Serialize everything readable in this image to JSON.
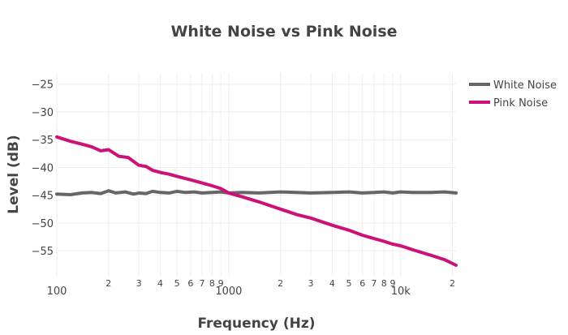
{
  "chart_data": {
    "type": "line",
    "title": "White Noise vs Pink Noise",
    "xlabel": "Frequency (Hz)",
    "ylabel": "Level (dB)",
    "x_scale": "log",
    "xlim": [
      100,
      21000
    ],
    "ylim": [
      -59.5,
      -23
    ],
    "grid": true,
    "legend_position": "top-right",
    "x_ticks_major": [
      {
        "value": 100,
        "label": "100"
      },
      {
        "value": 1000,
        "label": "1000"
      },
      {
        "value": 10000,
        "label": "10k"
      }
    ],
    "x_ticks_minor": [
      {
        "value": 200,
        "label": "2"
      },
      {
        "value": 300,
        "label": "3"
      },
      {
        "value": 400,
        "label": "4"
      },
      {
        "value": 500,
        "label": "5"
      },
      {
        "value": 600,
        "label": "6"
      },
      {
        "value": 700,
        "label": "7"
      },
      {
        "value": 800,
        "label": "8"
      },
      {
        "value": 900,
        "label": "9"
      },
      {
        "value": 2000,
        "label": "2"
      },
      {
        "value": 3000,
        "label": "3"
      },
      {
        "value": 4000,
        "label": "4"
      },
      {
        "value": 5000,
        "label": "5"
      },
      {
        "value": 6000,
        "label": "6"
      },
      {
        "value": 7000,
        "label": "7"
      },
      {
        "value": 8000,
        "label": "8"
      },
      {
        "value": 9000,
        "label": "9"
      },
      {
        "value": 20000,
        "label": "2"
      }
    ],
    "y_ticks": [
      {
        "value": -25,
        "label": "−25"
      },
      {
        "value": -30,
        "label": "−30"
      },
      {
        "value": -35,
        "label": "−35"
      },
      {
        "value": -40,
        "label": "−40"
      },
      {
        "value": -45,
        "label": "−45"
      },
      {
        "value": -50,
        "label": "−50"
      },
      {
        "value": -55,
        "label": "−55"
      }
    ],
    "series": [
      {
        "name": "White Noise",
        "color": "#666666",
        "x": [
          100,
          120,
          140,
          160,
          180,
          200,
          220,
          250,
          280,
          300,
          330,
          360,
          400,
          450,
          500,
          560,
          630,
          700,
          800,
          900,
          1000,
          1200,
          1500,
          2000,
          2500,
          3000,
          4000,
          5000,
          6000,
          7000,
          8000,
          9000,
          10000,
          12000,
          15000,
          18000,
          21000
        ],
        "y": [
          -44.8,
          -44.9,
          -44.6,
          -44.5,
          -44.7,
          -44.2,
          -44.6,
          -44.4,
          -44.8,
          -44.6,
          -44.7,
          -44.3,
          -44.5,
          -44.6,
          -44.3,
          -44.5,
          -44.4,
          -44.6,
          -44.5,
          -44.4,
          -44.6,
          -44.5,
          -44.6,
          -44.4,
          -44.5,
          -44.6,
          -44.5,
          -44.4,
          -44.6,
          -44.5,
          -44.4,
          -44.6,
          -44.4,
          -44.5,
          -44.5,
          -44.4,
          -44.6
        ]
      },
      {
        "name": "Pink Noise",
        "color": "#cc1177",
        "x": [
          100,
          120,
          140,
          160,
          180,
          200,
          230,
          260,
          300,
          330,
          360,
          400,
          450,
          500,
          560,
          630,
          700,
          800,
          900,
          1000,
          1200,
          1500,
          2000,
          2500,
          3000,
          4000,
          5000,
          6000,
          7000,
          8000,
          9000,
          10000,
          12000,
          15000,
          18000,
          21000
        ],
        "y": [
          -34.5,
          -35.3,
          -35.8,
          -36.3,
          -37.0,
          -36.8,
          -38.0,
          -38.2,
          -39.6,
          -39.8,
          -40.5,
          -40.9,
          -41.2,
          -41.6,
          -42.0,
          -42.4,
          -42.8,
          -43.3,
          -43.8,
          -44.6,
          -45.3,
          -46.2,
          -47.5,
          -48.5,
          -49.1,
          -50.4,
          -51.3,
          -52.2,
          -52.8,
          -53.3,
          -53.8,
          -54.1,
          -54.9,
          -55.8,
          -56.6,
          -57.6
        ]
      }
    ]
  }
}
